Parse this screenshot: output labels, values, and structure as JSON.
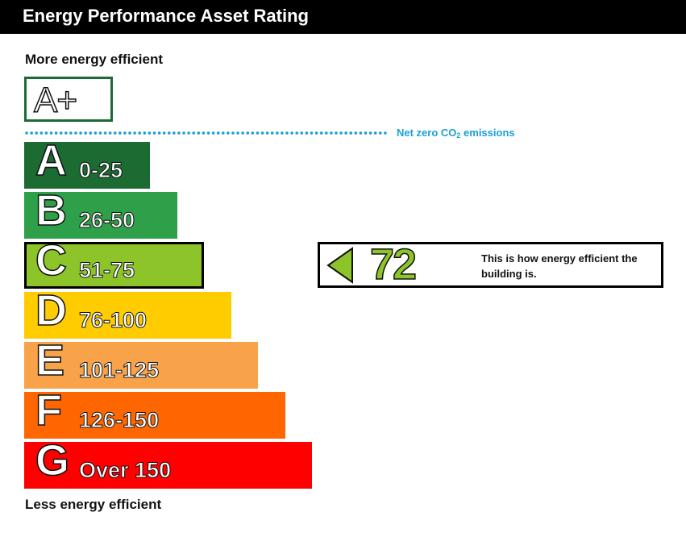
{
  "header": {
    "title": "Energy Performance Asset Rating"
  },
  "labels": {
    "more_efficient": "More energy efficient",
    "less_efficient": "Less energy efficient"
  },
  "net_zero": {
    "grade": "A+",
    "text_prefix": "Net zero CO",
    "text_sub": "2",
    "text_suffix": " emissions",
    "color": "#1aa0d8"
  },
  "indicator": {
    "score": "72",
    "band": "C",
    "description": "This is how energy efficient the building is.",
    "color": "#8cc429"
  },
  "chart_data": {
    "type": "bar",
    "categories": [
      "A",
      "B",
      "C",
      "D",
      "E",
      "F",
      "G"
    ],
    "ranges": [
      "0-25",
      "26-50",
      "51-75",
      "76-100",
      "101-125",
      "126-150",
      "Over 150"
    ],
    "colors": [
      "#1b6b32",
      "#2fa04a",
      "#8cc429",
      "#ffcc00",
      "#f8a24a",
      "#ff6600",
      "#ff0000"
    ],
    "current_rating": 72,
    "current_band": "C"
  }
}
